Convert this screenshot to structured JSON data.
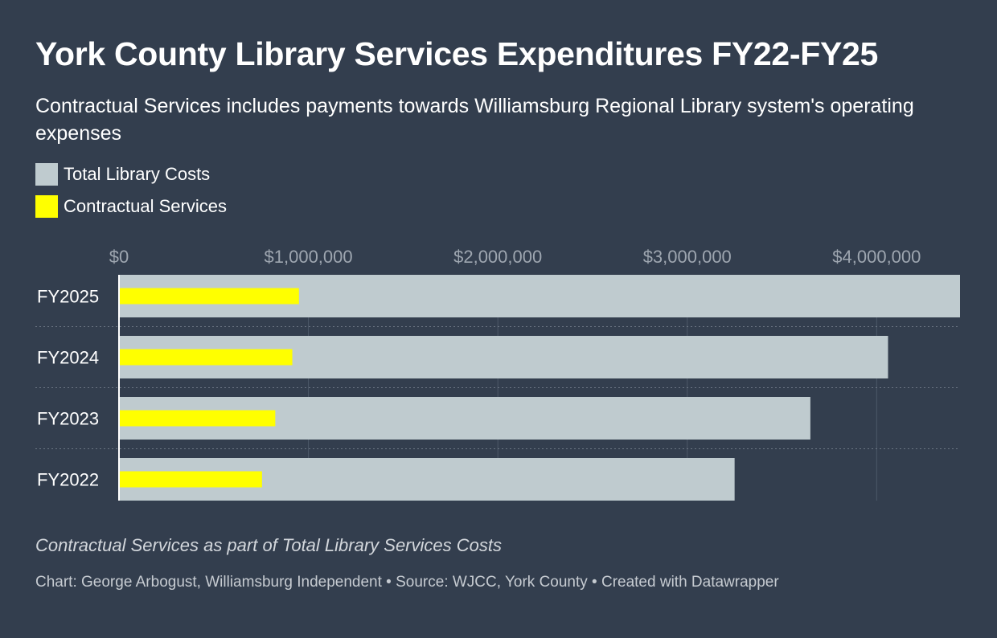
{
  "title": "York County Library Services Expenditures FY22-FY25",
  "subtitle": "Contractual Services includes payments towards Williamsburg Regional Library system's operating expenses",
  "legend": [
    {
      "label": "Total Library Costs",
      "color": "#bfcbcf"
    },
    {
      "label": "Contractual Services",
      "color": "#ffff00"
    }
  ],
  "note": "Contractual Services as part of Total Library Services Costs",
  "credit": "Chart: George Arbogust, Williamsburg Independent • Source: WJCC, York County • Created with Datawrapper",
  "chart_data": {
    "type": "bar",
    "orientation": "horizontal",
    "categories": [
      "FY2025",
      "FY2024",
      "FY2023",
      "FY2022"
    ],
    "series": [
      {
        "name": "Total Library Costs",
        "color": "#bfcbcf",
        "values": [
          4440000,
          4060000,
          3650000,
          3250000
        ]
      },
      {
        "name": "Contractual Services",
        "color": "#ffff00",
        "values": [
          950000,
          915000,
          825000,
          755000
        ]
      }
    ],
    "xlim": [
      0,
      4440000
    ],
    "xticks": [
      0,
      1000000,
      2000000,
      3000000,
      4000000
    ],
    "xtick_labels": [
      "$0",
      "$1,000,000",
      "$2,000,000",
      "$3,000,000",
      "$4,000,000"
    ],
    "axis_position": "top",
    "grid": true
  }
}
